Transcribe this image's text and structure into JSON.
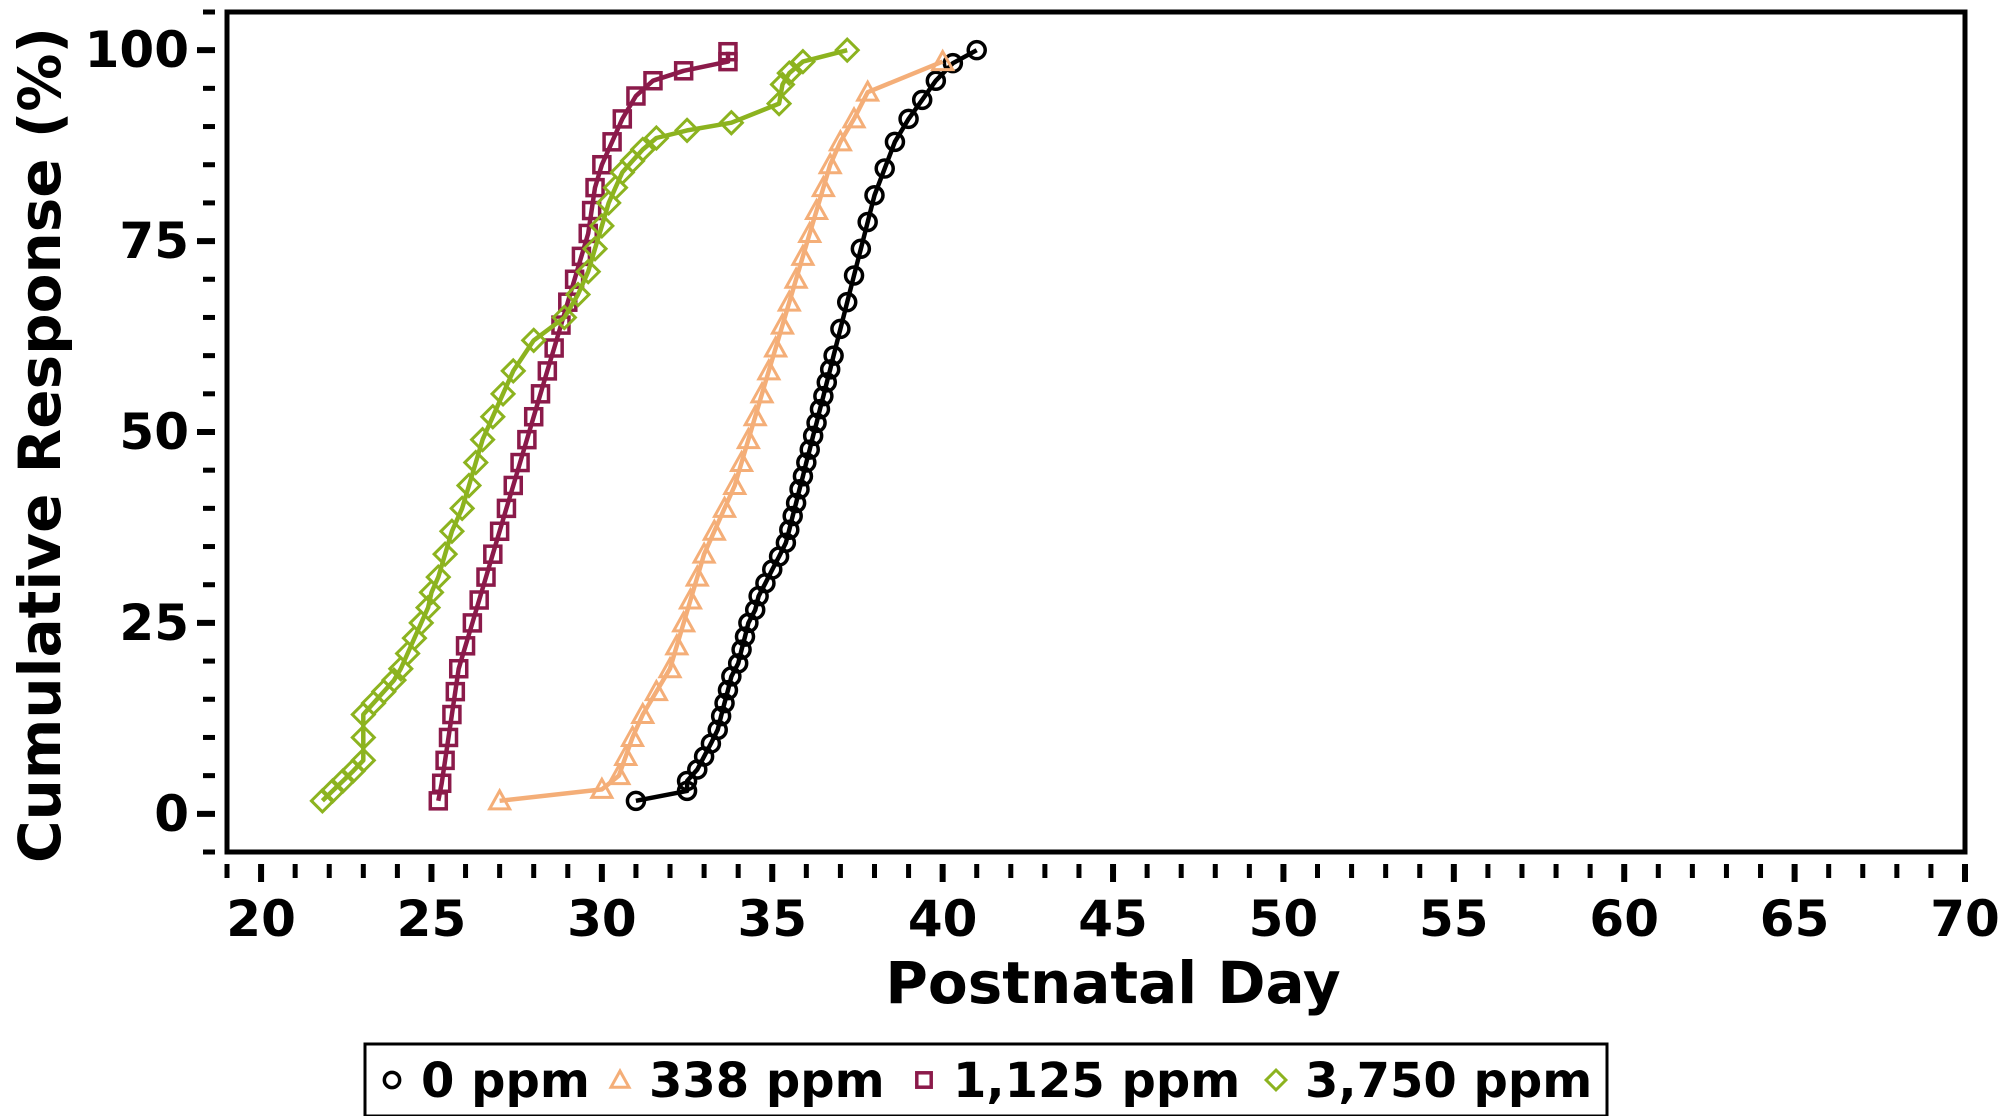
{
  "chart_data": {
    "type": "line",
    "title": "",
    "xlabel": "Postnatal Day",
    "ylabel": "Cumulative Response (%)",
    "xlim": [
      19,
      70
    ],
    "ylim": [
      -5,
      105
    ],
    "xticks": [
      20,
      25,
      30,
      35,
      40,
      45,
      50,
      55,
      60,
      65,
      70
    ],
    "yticks": [
      0,
      25,
      50,
      75,
      100
    ],
    "grid": false,
    "legend_position": "bottom",
    "series": [
      {
        "name": "0 ppm",
        "color": "#000000",
        "marker": "circle",
        "x": [
          31.0,
          32.5,
          32.5,
          32.8,
          33.0,
          33.2,
          33.4,
          33.5,
          33.6,
          33.7,
          33.8,
          34.0,
          34.1,
          34.2,
          34.3,
          34.5,
          34.6,
          34.8,
          35.0,
          35.2,
          35.4,
          35.5,
          35.6,
          35.7,
          35.8,
          35.9,
          36.0,
          36.1,
          36.2,
          36.3,
          36.4,
          36.5,
          36.6,
          36.7,
          36.8,
          37.0,
          37.2,
          37.4,
          37.6,
          37.8,
          38.0,
          38.3,
          38.6,
          39.0,
          39.4,
          39.8,
          40.3,
          41.0
        ],
        "y": [
          1.7,
          3.0,
          4.3,
          5.8,
          7.5,
          9.2,
          11.0,
          12.8,
          14.5,
          16.2,
          18.0,
          19.7,
          21.5,
          23.2,
          25.0,
          26.7,
          28.5,
          30.2,
          32.0,
          33.7,
          35.5,
          37.2,
          39.0,
          40.7,
          42.5,
          44.2,
          46.0,
          47.7,
          49.5,
          51.2,
          53.0,
          54.7,
          56.5,
          58.2,
          60.0,
          63.5,
          67.0,
          70.5,
          74.0,
          77.5,
          81.0,
          84.5,
          88.0,
          91.0,
          93.5,
          96.0,
          98.3,
          100.0
        ]
      },
      {
        "name": "338 ppm",
        "color": "#F4AE78",
        "marker": "triangle",
        "x": [
          27.0,
          30.0,
          30.5,
          30.7,
          30.9,
          31.2,
          31.6,
          32.0,
          32.2,
          32.4,
          32.6,
          32.8,
          33.0,
          33.3,
          33.6,
          33.9,
          34.1,
          34.3,
          34.5,
          34.7,
          34.9,
          35.1,
          35.3,
          35.5,
          35.7,
          35.9,
          36.1,
          36.3,
          36.5,
          36.7,
          37.0,
          37.4,
          37.8,
          40.0
        ],
        "y": [
          1.7,
          3.2,
          5.0,
          7.5,
          10.0,
          13.0,
          16.0,
          19.0,
          22.0,
          25.0,
          28.0,
          31.0,
          34.0,
          37.0,
          40.0,
          43.0,
          46.0,
          49.0,
          52.0,
          55.0,
          58.0,
          61.0,
          64.0,
          67.0,
          70.0,
          73.0,
          76.0,
          79.0,
          82.0,
          85.0,
          88.0,
          91.0,
          94.5,
          98.5
        ]
      },
      {
        "name": "1,125 ppm",
        "color": "#8B1A4A",
        "marker": "square",
        "x": [
          25.2,
          25.3,
          25.4,
          25.5,
          25.6,
          25.7,
          25.8,
          26.0,
          26.2,
          26.4,
          26.6,
          26.8,
          27.0,
          27.2,
          27.4,
          27.6,
          27.8,
          28.0,
          28.2,
          28.4,
          28.6,
          28.8,
          29.0,
          29.2,
          29.4,
          29.6,
          29.7,
          29.8,
          30.0,
          30.3,
          30.6,
          31.0,
          31.5,
          32.4,
          33.7,
          33.7
        ],
        "y": [
          1.7,
          4.0,
          7.0,
          10.0,
          13.0,
          16.0,
          19.0,
          22.0,
          25.0,
          28.0,
          31.0,
          34.0,
          37.0,
          40.0,
          43.0,
          46.0,
          49.0,
          52.0,
          55.0,
          58.0,
          61.0,
          64.0,
          67.0,
          70.0,
          73.0,
          76.0,
          79.0,
          82.0,
          85.0,
          88.0,
          91.0,
          94.0,
          96.0,
          97.3,
          98.5,
          99.8
        ]
      },
      {
        "name": "3,750 ppm",
        "color": "#8CB31F",
        "marker": "diamond",
        "x": [
          21.8,
          22.1,
          22.4,
          22.7,
          23.0,
          23.0,
          23.0,
          23.3,
          23.6,
          23.9,
          24.1,
          24.3,
          24.5,
          24.7,
          24.9,
          25.0,
          25.2,
          25.4,
          25.6,
          25.9,
          26.1,
          26.3,
          26.5,
          26.8,
          27.1,
          27.4,
          28.0,
          28.9,
          29.3,
          29.6,
          29.8,
          30.0,
          30.2,
          30.4,
          30.6,
          30.9,
          31.2,
          31.6,
          32.5,
          33.8,
          35.2,
          35.3,
          35.5,
          35.9,
          37.2
        ],
        "y": [
          1.7,
          3.0,
          4.3,
          5.6,
          7.0,
          10.0,
          13.0,
          14.5,
          16.0,
          17.5,
          19.0,
          21.0,
          23.0,
          25.0,
          27.0,
          29.0,
          31.0,
          34.0,
          37.0,
          40.0,
          43.0,
          46.0,
          49.0,
          52.0,
          55.0,
          58.0,
          62.0,
          65.0,
          68.0,
          71.0,
          74.0,
          77.0,
          80.0,
          82.0,
          84.0,
          85.5,
          87.0,
          88.5,
          89.5,
          90.5,
          93.0,
          95.5,
          97.0,
          98.5,
          100.0
        ]
      }
    ]
  }
}
